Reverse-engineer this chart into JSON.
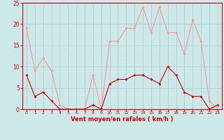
{
  "x": [
    0,
    1,
    2,
    3,
    4,
    5,
    6,
    7,
    8,
    9,
    10,
    11,
    12,
    13,
    14,
    15,
    16,
    17,
    18,
    19,
    20,
    21,
    22,
    23
  ],
  "wind_avg": [
    8,
    3,
    4,
    2,
    0,
    0,
    0,
    0,
    1,
    0,
    6,
    7,
    7,
    8,
    8,
    7,
    6,
    10,
    8,
    4,
    3,
    3,
    0,
    1
  ],
  "wind_gust": [
    19,
    9,
    12,
    9,
    1,
    0,
    0,
    0,
    8,
    0,
    16,
    16,
    19,
    19,
    24,
    18,
    24,
    18,
    18,
    13,
    21,
    16,
    2,
    0
  ],
  "xlabel": "Vent moyen/en rafales ( km/h )",
  "ylim": [
    0,
    25
  ],
  "yticks": [
    0,
    5,
    10,
    15,
    20,
    25
  ],
  "xticks": [
    0,
    1,
    2,
    3,
    4,
    5,
    6,
    7,
    8,
    9,
    10,
    11,
    12,
    13,
    14,
    15,
    16,
    17,
    18,
    19,
    20,
    21,
    22,
    23
  ],
  "bg_color": "#cce8e8",
  "grid_color": "#aacccc",
  "avg_color": "#cc0000",
  "gust_color": "#ff9999",
  "spine_color": "#cc0000",
  "tick_color": "#cc0000",
  "label_color": "#cc0000"
}
